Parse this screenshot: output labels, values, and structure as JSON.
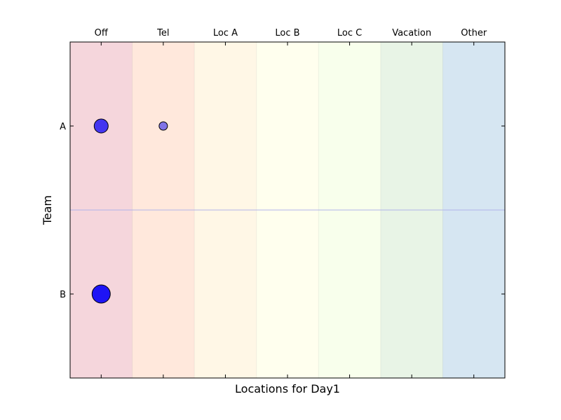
{
  "chart_data": {
    "type": "scatter",
    "xlabel": "Locations for Day1",
    "ylabel": "Team",
    "categories": [
      "Off",
      "Tel",
      "Loc A",
      "Loc B",
      "Loc C",
      "Vacation",
      "Other"
    ],
    "category_colors": [
      "#f5d6dc",
      "#ffe8dc",
      "#fff7e6",
      "#ffffee",
      "#f8ffec",
      "#e8f4e6",
      "#d6e6f2"
    ],
    "y_categories": [
      "A",
      "B"
    ],
    "grid": false,
    "points": [
      {
        "x": "Off",
        "y": "A",
        "size": 1.0,
        "color": "#3a2cf0",
        "alpha": 0.95
      },
      {
        "x": "Tel",
        "y": "A",
        "size": 0.6,
        "color": "#6a5ee8",
        "alpha": 0.85
      },
      {
        "x": "Off",
        "y": "B",
        "size": 1.3,
        "color": "#1e14f5",
        "alpha": 1.0
      }
    ],
    "separator_color": "#b0b4ea"
  }
}
